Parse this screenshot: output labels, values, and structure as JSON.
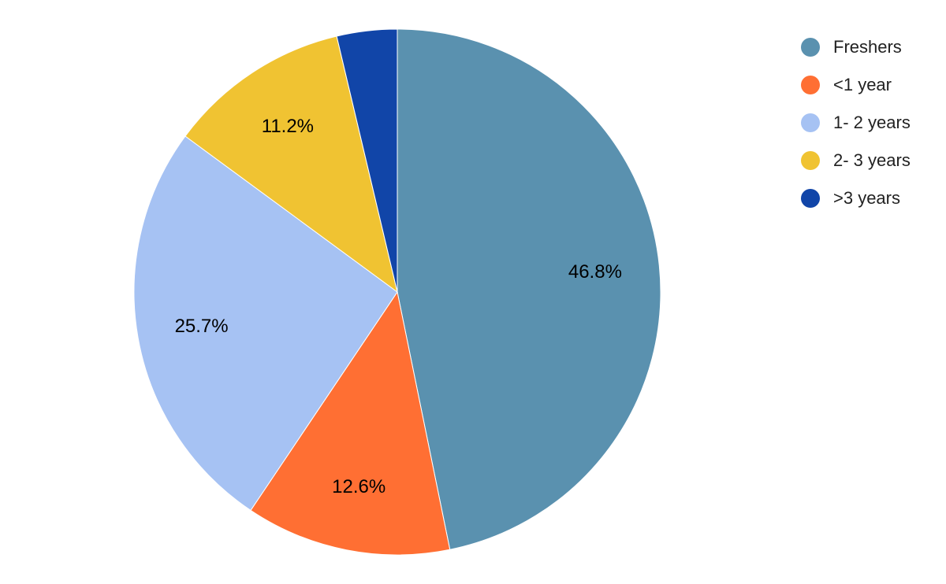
{
  "chart_data": {
    "type": "pie",
    "title": "",
    "legend_position": "top-right",
    "start_angle": "12 o'clock",
    "direction": "clockwise",
    "slices": [
      {
        "label": "Freshers",
        "value": 46.8,
        "value_label": "46.8%",
        "color": "#5a91af"
      },
      {
        "label": "<1 year",
        "value": 12.6,
        "value_label": "12.6%",
        "color": "#ff6f33"
      },
      {
        "label": "1- 2 years",
        "value": 25.7,
        "value_label": "25.7%",
        "color": "#a6c2f3"
      },
      {
        "label": "2- 3 years",
        "value": 11.2,
        "value_label": "11.2%",
        "color": "#f0c332"
      },
      {
        "label": ">3 years",
        "value": 3.7,
        "value_label": "",
        "color": "#1145a8"
      }
    ]
  }
}
